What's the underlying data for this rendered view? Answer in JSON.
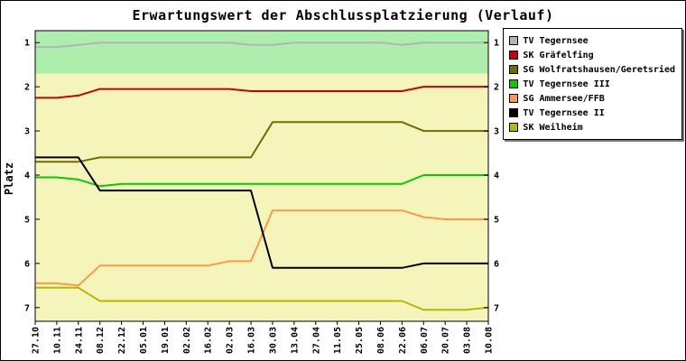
{
  "chart_data": {
    "type": "line",
    "title": "Erwartungswert der Abschlussplatzierung (Verlauf)",
    "ylabel": "Platz",
    "x_labels": [
      "27.10",
      "10.11",
      "24.11",
      "08.12",
      "22.12",
      "05.01",
      "19.01",
      "02.02",
      "16.02",
      "02.03",
      "16.03",
      "30.03",
      "13.04",
      "27.04",
      "11.05",
      "25.05",
      "08.06",
      "22.06",
      "06.07",
      "20.07",
      "03.08",
      "10.08"
    ],
    "y_ticks": [
      1,
      2,
      3,
      4,
      5,
      6,
      7
    ],
    "ylim": [
      0.73,
      7.31
    ],
    "y_inverted": true,
    "grid": false,
    "legend_position": "top-right",
    "plot_bg": "#f5f5bb",
    "band": {
      "from": 0.73,
      "to": 1.7,
      "color": "#adeead"
    },
    "series": [
      {
        "name": "TV Tegernsee",
        "color": "#b3b3ba",
        "values": [
          1.1,
          1.1,
          1.05,
          1.0,
          1.0,
          1.0,
          1.0,
          1.0,
          1.0,
          1.0,
          1.05,
          1.05,
          1.0,
          1.0,
          1.0,
          1.0,
          1.0,
          1.05,
          1.0,
          1.0,
          1.0,
          1.0
        ]
      },
      {
        "name": "SK Gräfelfing",
        "color": "#cc0000",
        "values": [
          2.25,
          2.25,
          2.2,
          2.05,
          2.05,
          2.05,
          2.05,
          2.05,
          2.05,
          2.05,
          2.1,
          2.1,
          2.1,
          2.1,
          2.1,
          2.1,
          2.1,
          2.1,
          2.0,
          2.0,
          2.0,
          2.0
        ]
      },
      {
        "name": "SG Wolfratshausen/Geretsried",
        "color": "#6e6e00",
        "values": [
          3.7,
          3.7,
          3.7,
          3.6,
          3.6,
          3.6,
          3.6,
          3.6,
          3.6,
          3.6,
          3.6,
          2.8,
          2.8,
          2.8,
          2.8,
          2.8,
          2.8,
          2.8,
          3.0,
          3.0,
          3.0,
          3.0
        ]
      },
      {
        "name": "TV Tegernsee III",
        "color": "#00cc00",
        "values": [
          4.05,
          4.05,
          4.1,
          4.25,
          4.2,
          4.2,
          4.2,
          4.2,
          4.2,
          4.2,
          4.2,
          4.2,
          4.2,
          4.2,
          4.2,
          4.2,
          4.2,
          4.2,
          4.0,
          4.0,
          4.0,
          4.0
        ]
      },
      {
        "name": "SG Ammersee/FFB",
        "color": "#fb9a4b",
        "values": [
          6.45,
          6.45,
          6.5,
          6.05,
          6.05,
          6.05,
          6.05,
          6.05,
          6.05,
          5.95,
          5.95,
          4.8,
          4.8,
          4.8,
          4.8,
          4.8,
          4.8,
          4.8,
          4.95,
          5.0,
          5.0,
          5.0
        ]
      },
      {
        "name": "TV Tegernsee II",
        "color": "#000000",
        "values": [
          3.6,
          3.6,
          3.6,
          4.35,
          4.35,
          4.35,
          4.35,
          4.35,
          4.35,
          4.35,
          4.35,
          6.1,
          6.1,
          6.1,
          6.1,
          6.1,
          6.1,
          6.1,
          6.0,
          6.0,
          6.0,
          6.0
        ]
      },
      {
        "name": "SK Weilheim",
        "color": "#b8b800",
        "values": [
          6.55,
          6.55,
          6.55,
          6.85,
          6.85,
          6.85,
          6.85,
          6.85,
          6.85,
          6.85,
          6.85,
          6.85,
          6.85,
          6.85,
          6.85,
          6.85,
          6.85,
          6.85,
          7.05,
          7.05,
          7.05,
          7.0
        ]
      }
    ]
  }
}
